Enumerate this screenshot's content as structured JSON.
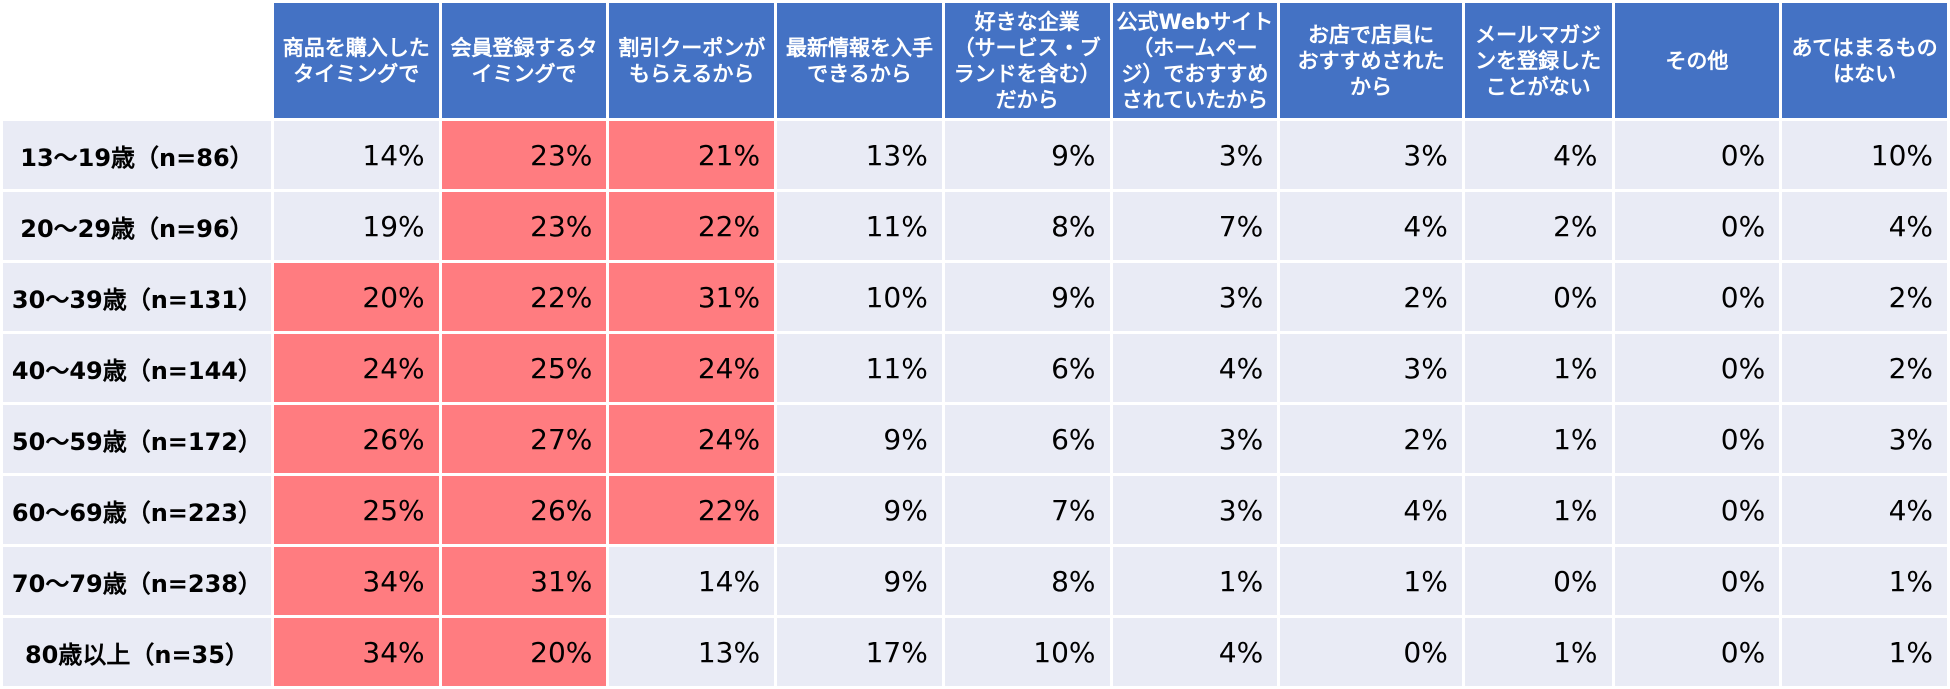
{
  "chart_data": {
    "type": "table",
    "highlight_color": "#ff7c80",
    "header_color": "#4472c4",
    "cell_color": "#e9ebf5",
    "columns": [
      "商品を購入した\nタイミングで",
      "会員登録するタ\nイミングで",
      "割引クーポンが\nもらえるから",
      "最新情報を入手\nできるから",
      "好きな企業\n（サービス・ブ\nランドを含む）\nだから",
      "公式Webサイト\n（ホームペー\nジ）でおすすめ\nされていたから",
      "お店で店員に\nおすすめされた\nから",
      "メールマガジ\nンを登録した\nことがない",
      "その他",
      "あてはまるもの\nはない"
    ],
    "rows": [
      {
        "label": "13〜19歳（n=86）",
        "values": [
          "14%",
          "23%",
          "21%",
          "13%",
          "9%",
          "3%",
          "3%",
          "4%",
          "0%",
          "10%"
        ],
        "highlight": [
          false,
          true,
          true,
          false,
          false,
          false,
          false,
          false,
          false,
          false
        ]
      },
      {
        "label": "20〜29歳（n=96）",
        "values": [
          "19%",
          "23%",
          "22%",
          "11%",
          "8%",
          "7%",
          "4%",
          "2%",
          "0%",
          "4%"
        ],
        "highlight": [
          false,
          true,
          true,
          false,
          false,
          false,
          false,
          false,
          false,
          false
        ]
      },
      {
        "label": "30〜39歳（n=131）",
        "values": [
          "20%",
          "22%",
          "31%",
          "10%",
          "9%",
          "3%",
          "2%",
          "0%",
          "0%",
          "2%"
        ],
        "highlight": [
          true,
          true,
          true,
          false,
          false,
          false,
          false,
          false,
          false,
          false
        ]
      },
      {
        "label": "40〜49歳（n=144）",
        "values": [
          "24%",
          "25%",
          "24%",
          "11%",
          "6%",
          "4%",
          "3%",
          "1%",
          "0%",
          "2%"
        ],
        "highlight": [
          true,
          true,
          true,
          false,
          false,
          false,
          false,
          false,
          false,
          false
        ]
      },
      {
        "label": "50〜59歳（n=172）",
        "values": [
          "26%",
          "27%",
          "24%",
          "9%",
          "6%",
          "3%",
          "2%",
          "1%",
          "0%",
          "3%"
        ],
        "highlight": [
          true,
          true,
          true,
          false,
          false,
          false,
          false,
          false,
          false,
          false
        ]
      },
      {
        "label": "60〜69歳（n=223）",
        "values": [
          "25%",
          "26%",
          "22%",
          "9%",
          "7%",
          "3%",
          "4%",
          "1%",
          "0%",
          "4%"
        ],
        "highlight": [
          true,
          true,
          true,
          false,
          false,
          false,
          false,
          false,
          false,
          false
        ]
      },
      {
        "label": "70〜79歳（n=238）",
        "values": [
          "34%",
          "31%",
          "14%",
          "9%",
          "8%",
          "1%",
          "1%",
          "0%",
          "0%",
          "1%"
        ],
        "highlight": [
          true,
          true,
          false,
          false,
          false,
          false,
          false,
          false,
          false,
          false
        ]
      },
      {
        "label": "80歳以上（n=35）",
        "values": [
          "34%",
          "20%",
          "13%",
          "17%",
          "10%",
          "4%",
          "0%",
          "1%",
          "0%",
          "1%"
        ],
        "highlight": [
          true,
          true,
          false,
          false,
          false,
          false,
          false,
          false,
          false,
          false
        ]
      }
    ]
  }
}
